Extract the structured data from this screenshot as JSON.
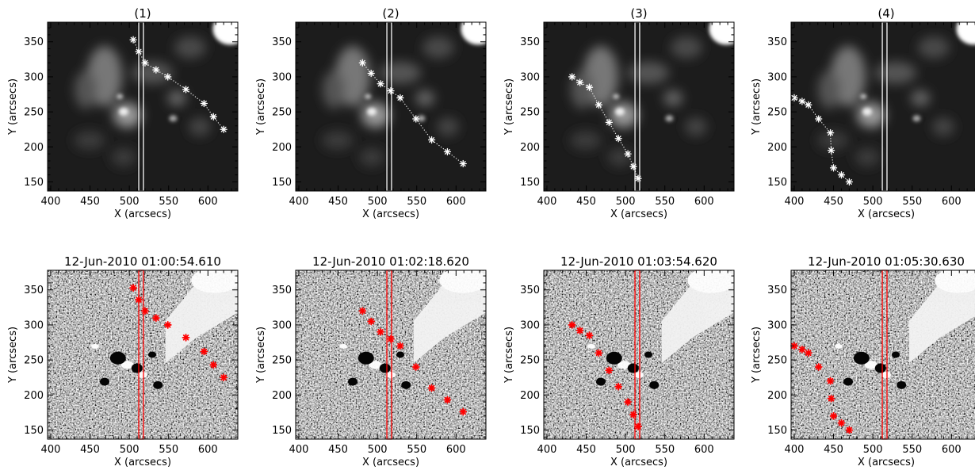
{
  "chart_data": [
    {
      "type": "scatter",
      "title": "(1)",
      "image_style": "euv",
      "xlabel": "X (arcsecs)",
      "ylabel": "Y (arcsecs)",
      "xlim": [
        396,
        638
      ],
      "ylim": [
        137,
        378
      ],
      "xticks": [
        "400",
        "450",
        "500",
        "550",
        "600"
      ],
      "yticks": [
        "150",
        "200",
        "250",
        "300",
        "350"
      ],
      "slit_x": [
        512,
        518
      ],
      "series": [
        {
          "marker": "asterisk",
          "linestyle": "dotted",
          "color": "#ffffff",
          "x": [
            505,
            512,
            520,
            534,
            549,
            572,
            595,
            607,
            620
          ],
          "y": [
            353,
            336,
            320,
            310,
            300,
            282,
            262,
            243,
            225
          ]
        }
      ]
    },
    {
      "type": "scatter",
      "title": "(2)",
      "image_style": "euv",
      "xlabel": "X (arcsecs)",
      "ylabel": "Y (arcsecs)",
      "xlim": [
        396,
        638
      ],
      "ylim": [
        137,
        378
      ],
      "xticks": [
        "400",
        "450",
        "500",
        "550",
        "600"
      ],
      "yticks": [
        "150",
        "200",
        "250",
        "300",
        "350"
      ],
      "slit_x": [
        512,
        518
      ],
      "series": [
        {
          "marker": "asterisk",
          "linestyle": "dotted",
          "color": "#ffffff",
          "x": [
            481,
            492,
            504,
            517,
            529,
            549,
            569,
            589,
            609
          ],
          "y": [
            320,
            305,
            290,
            280,
            270,
            240,
            210,
            193,
            176
          ]
        }
      ]
    },
    {
      "type": "scatter",
      "title": "(3)",
      "image_style": "euv",
      "xlabel": "X (arcsecs)",
      "ylabel": "Y (arcsecs)",
      "xlim": [
        396,
        638
      ],
      "ylim": [
        137,
        378
      ],
      "xticks": [
        "400",
        "450",
        "500",
        "550",
        "600"
      ],
      "yticks": [
        "150",
        "200",
        "250",
        "300",
        "350"
      ],
      "slit_x": [
        512,
        518
      ],
      "series": [
        {
          "marker": "asterisk",
          "linestyle": "dotted",
          "color": "#ffffff",
          "x": [
            432,
            442,
            454,
            466,
            479,
            491,
            503,
            510,
            516
          ],
          "y": [
            300,
            292,
            285,
            260,
            235,
            212,
            190,
            172,
            155
          ]
        }
      ]
    },
    {
      "type": "scatter",
      "title": "(4)",
      "image_style": "euv",
      "xlabel": "X (arcsecs)",
      "ylabel": "Y (arcsecs)",
      "xlim": [
        396,
        638
      ],
      "ylim": [
        137,
        378
      ],
      "xticks": [
        "400",
        "450",
        "500",
        "550",
        "600"
      ],
      "yticks": [
        "150",
        "200",
        "250",
        "300",
        "350"
      ],
      "slit_x": [
        512,
        518
      ],
      "series": [
        {
          "marker": "asterisk",
          "linestyle": "dotted",
          "color": "#ffffff",
          "x": [
            400,
            410,
            418,
            431,
            446,
            447,
            450,
            460,
            470
          ],
          "y": [
            270,
            265,
            260,
            240,
            220,
            195,
            170,
            160,
            150
          ]
        }
      ]
    },
    {
      "type": "scatter",
      "title": "12-Jun-2010  01:00:54.610",
      "image_style": "difference",
      "xlabel": "X (arcsecs)",
      "ylabel": "Y (arcsecs)",
      "xlim": [
        396,
        638
      ],
      "ylim": [
        137,
        378
      ],
      "xticks": [
        "400",
        "450",
        "500",
        "550",
        "600"
      ],
      "yticks": [
        "150",
        "200",
        "250",
        "300",
        "350"
      ],
      "slit_x": [
        512,
        518
      ],
      "series": [
        {
          "marker": "asterisk",
          "linestyle": "none",
          "color": "#ff0000",
          "x": [
            505,
            512,
            520,
            534,
            549,
            572,
            595,
            607,
            620
          ],
          "y": [
            353,
            336,
            320,
            310,
            300,
            282,
            262,
            243,
            225
          ]
        }
      ]
    },
    {
      "type": "scatter",
      "title": "12-Jun-2010  01:02:18.620",
      "image_style": "difference",
      "xlabel": "X (arcsecs)",
      "ylabel": "Y (arcsecs)",
      "xlim": [
        396,
        638
      ],
      "ylim": [
        137,
        378
      ],
      "xticks": [
        "400",
        "450",
        "500",
        "550",
        "600"
      ],
      "yticks": [
        "150",
        "200",
        "250",
        "300",
        "350"
      ],
      "slit_x": [
        512,
        518
      ],
      "series": [
        {
          "marker": "asterisk",
          "linestyle": "none",
          "color": "#ff0000",
          "x": [
            481,
            492,
            504,
            517,
            529,
            549,
            569,
            589,
            609
          ],
          "y": [
            320,
            305,
            290,
            280,
            270,
            240,
            210,
            193,
            176
          ]
        }
      ]
    },
    {
      "type": "scatter",
      "title": "12-Jun-2010  01:03:54.620",
      "image_style": "difference",
      "xlabel": "X (arcsecs)",
      "ylabel": "Y (arcsecs)",
      "xlim": [
        396,
        638
      ],
      "ylim": [
        137,
        378
      ],
      "xticks": [
        "400",
        "450",
        "500",
        "550",
        "600"
      ],
      "yticks": [
        "150",
        "200",
        "250",
        "300",
        "350"
      ],
      "slit_x": [
        512,
        518
      ],
      "series": [
        {
          "marker": "asterisk",
          "linestyle": "none",
          "color": "#ff0000",
          "x": [
            432,
            442,
            454,
            466,
            479,
            491,
            503,
            510,
            516
          ],
          "y": [
            300,
            292,
            285,
            260,
            235,
            212,
            190,
            172,
            155
          ]
        }
      ]
    },
    {
      "type": "scatter",
      "title": "12-Jun-2010  01:05:30.630",
      "image_style": "difference",
      "xlabel": "X (arcsecs)",
      "ylabel": "Y (arcsecs)",
      "xlim": [
        396,
        638
      ],
      "ylim": [
        137,
        378
      ],
      "xticks": [
        "400",
        "450",
        "500",
        "550",
        "600"
      ],
      "yticks": [
        "150",
        "200",
        "250",
        "300",
        "350"
      ],
      "slit_x": [
        512,
        518
      ],
      "series": [
        {
          "marker": "asterisk",
          "linestyle": "none",
          "color": "#ff0000",
          "x": [
            400,
            410,
            418,
            431,
            446,
            447,
            450,
            460,
            470
          ],
          "y": [
            270,
            265,
            260,
            240,
            220,
            195,
            170,
            160,
            150
          ]
        }
      ]
    }
  ]
}
